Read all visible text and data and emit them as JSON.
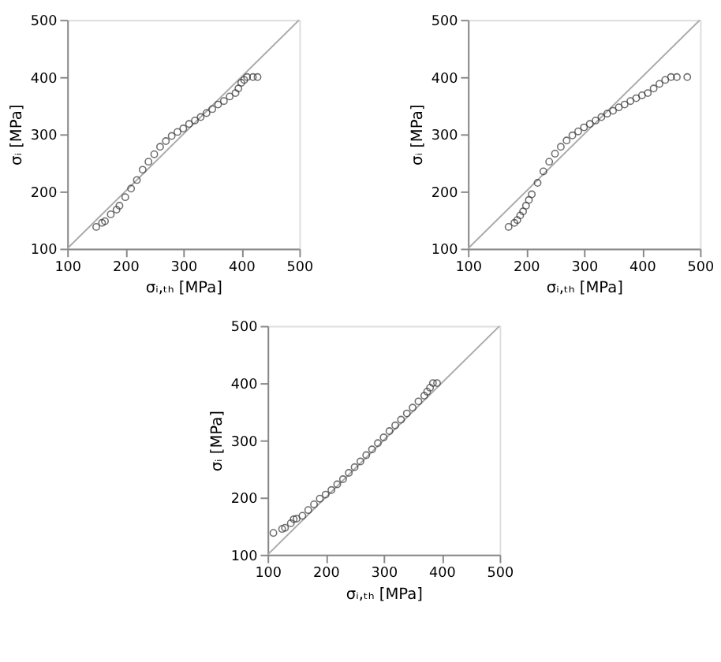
{
  "chart_data": [
    {
      "type": "scatter",
      "xlabel": "σᵢ,ₜₕ [MPa]",
      "ylabel": "σᵢ [MPa]",
      "xlim": [
        100,
        500
      ],
      "ylim": [
        100,
        500
      ],
      "xticks": [
        100,
        200,
        300,
        400,
        500
      ],
      "yticks": [
        100,
        200,
        300,
        400,
        500
      ],
      "grid": false,
      "series": [
        {
          "type": "line",
          "marker": "none",
          "color": "#aaaaaa",
          "x": [
            100,
            500
          ],
          "values": [
            100,
            500
          ]
        },
        {
          "marker": "circle",
          "color": "#333333",
          "x": [
            150,
            160,
            165,
            175,
            185,
            190,
            200,
            210,
            220,
            230,
            240,
            250,
            260,
            270,
            280,
            290,
            300,
            310,
            320,
            330,
            340,
            350,
            360,
            370,
            380,
            390,
            395,
            400,
            405,
            410,
            420,
            428
          ],
          "values": [
            138,
            145,
            148,
            160,
            168,
            175,
            190,
            205,
            220,
            238,
            252,
            265,
            278,
            288,
            297,
            304,
            310,
            318,
            324,
            330,
            337,
            344,
            352,
            358,
            366,
            372,
            380,
            390,
            395,
            400,
            400,
            400
          ]
        }
      ]
    },
    {
      "type": "scatter",
      "xlabel": "σᵢ,ₜₕ [MPa]",
      "ylabel": "σᵢ [MPa]",
      "xlim": [
        100,
        500
      ],
      "ylim": [
        100,
        500
      ],
      "xticks": [
        100,
        200,
        300,
        400,
        500
      ],
      "yticks": [
        100,
        200,
        300,
        400,
        500
      ],
      "grid": false,
      "series": [
        {
          "type": "line",
          "marker": "none",
          "color": "#aaaaaa",
          "x": [
            100,
            500
          ],
          "values": [
            100,
            500
          ]
        },
        {
          "marker": "circle",
          "color": "#333333",
          "x": [
            170,
            180,
            185,
            190,
            195,
            200,
            205,
            210,
            220,
            230,
            240,
            250,
            260,
            270,
            280,
            290,
            300,
            310,
            320,
            330,
            340,
            350,
            360,
            370,
            380,
            390,
            400,
            410,
            420,
            430,
            440,
            450,
            460,
            478
          ],
          "values": [
            138,
            145,
            150,
            158,
            165,
            175,
            185,
            195,
            215,
            235,
            252,
            266,
            278,
            289,
            298,
            305,
            312,
            318,
            324,
            330,
            336,
            341,
            347,
            352,
            358,
            363,
            368,
            372,
            380,
            388,
            395,
            400,
            400,
            400
          ]
        }
      ]
    },
    {
      "type": "scatter",
      "xlabel": "σᵢ,ₜₕ [MPa]",
      "ylabel": "σᵢ [MPa]",
      "xlim": [
        100,
        500
      ],
      "ylim": [
        100,
        500
      ],
      "xticks": [
        100,
        200,
        300,
        400,
        500
      ],
      "yticks": [
        100,
        200,
        300,
        400,
        500
      ],
      "grid": false,
      "series": [
        {
          "type": "line",
          "marker": "none",
          "color": "#aaaaaa",
          "x": [
            100,
            500
          ],
          "values": [
            100,
            500
          ]
        },
        {
          "marker": "circle",
          "color": "#333333",
          "x": [
            110,
            125,
            130,
            140,
            145,
            150,
            160,
            170,
            180,
            190,
            200,
            210,
            220,
            230,
            240,
            250,
            260,
            270,
            280,
            290,
            300,
            310,
            320,
            330,
            340,
            350,
            360,
            370,
            375,
            380,
            385,
            392
          ],
          "values": [
            138,
            145,
            147,
            155,
            162,
            163,
            168,
            178,
            188,
            198,
            205,
            213,
            223,
            232,
            243,
            253,
            263,
            274,
            284,
            295,
            305,
            316,
            326,
            336,
            347,
            357,
            368,
            378,
            385,
            392,
            400,
            400
          ]
        }
      ]
    }
  ]
}
